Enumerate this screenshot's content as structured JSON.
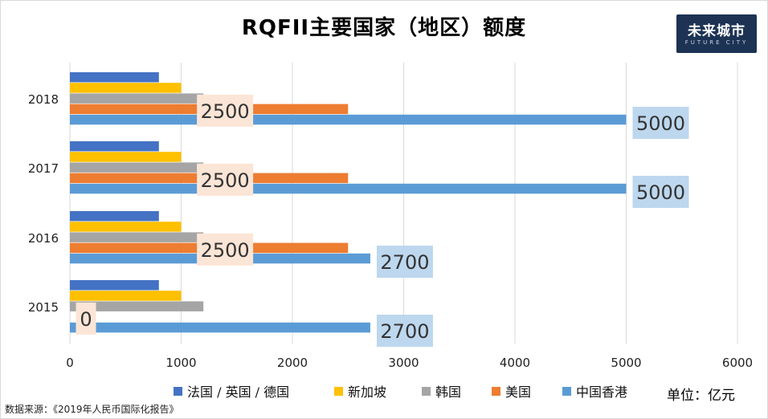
{
  "title": "RQFII主要国家（地区）额度",
  "logo": {
    "text": "未来城市",
    "subtext": "FUTURE CITY"
  },
  "unit_label": "单位：亿元",
  "source": "数据来源：《2019年人民币国际化报告》",
  "chart_data": {
    "type": "bar",
    "orientation": "horizontal",
    "categories": [
      "2018",
      "2017",
      "2016",
      "2015"
    ],
    "series": [
      {
        "name": "法国 / 英国 / 德国",
        "color": "#4472c4",
        "values": [
          800,
          800,
          800,
          800
        ]
      },
      {
        "name": "新加坡",
        "color": "#ffc000",
        "values": [
          1000,
          1000,
          1000,
          1000
        ]
      },
      {
        "name": "韩国",
        "color": "#a5a5a5",
        "values": [
          1200,
          1200,
          1200,
          1200
        ]
      },
      {
        "name": "美国",
        "color": "#ed7d31",
        "values": [
          2500,
          2500,
          2500,
          0
        ]
      },
      {
        "name": "中国香港",
        "color": "#5b9bd5",
        "values": [
          5000,
          5000,
          2700,
          2700
        ]
      }
    ],
    "data_labels": [
      {
        "category": "2018",
        "series": "美国",
        "text": "2500"
      },
      {
        "category": "2018",
        "series": "中国香港",
        "text": "5000"
      },
      {
        "category": "2017",
        "series": "美国",
        "text": "2500"
      },
      {
        "category": "2017",
        "series": "中国香港",
        "text": "5000"
      },
      {
        "category": "2016",
        "series": "美国",
        "text": "2500"
      },
      {
        "category": "2016",
        "series": "中国香港",
        "text": "2700"
      },
      {
        "category": "2015",
        "series": "美国",
        "text": "0"
      },
      {
        "category": "2015",
        "series": "中国香港",
        "text": "2700"
      }
    ],
    "xlim": [
      0,
      6000
    ],
    "x_ticks": [
      "0",
      "1000",
      "2000",
      "3000",
      "4000",
      "5000",
      "6000"
    ],
    "grid": true,
    "legend_position": "bottom"
  }
}
